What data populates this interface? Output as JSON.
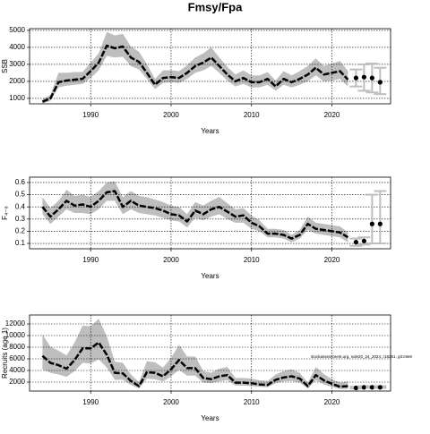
{
  "title": "Fmsy/Fpa",
  "annotation": "stockassessment.org, sole20_24_2024, r18261, git:c9e8",
  "chart_data": [
    {
      "type": "band-line",
      "ylabel": "SSB",
      "xlabel": "Years",
      "xlim": [
        1982.4,
        2027.3
      ],
      "xticks": [
        1990,
        2000,
        2010,
        2020
      ],
      "ylim": [
        680,
        5100
      ],
      "yticks": [
        1000,
        2000,
        3000,
        4000,
        5000
      ],
      "grid": true,
      "color": "#000000",
      "band_color": "#bebebe",
      "errorbar_color": "#bebebe",
      "x": [
        1984,
        1985,
        1986,
        1987,
        1988,
        1989,
        1990,
        1991,
        1992,
        1993,
        1994,
        1995,
        1996,
        1997,
        1998,
        1999,
        2000,
        2001,
        2002,
        2003,
        2004,
        2005,
        2006,
        2007,
        2008,
        2009,
        2010,
        2011,
        2012,
        2013,
        2014,
        2015,
        2016,
        2017,
        2018,
        2019,
        2020,
        2021,
        2022
      ],
      "values": [
        800,
        1000,
        1950,
        2050,
        2100,
        2150,
        2600,
        3100,
        4100,
        3950,
        4050,
        3400,
        3150,
        2500,
        1800,
        2200,
        2250,
        2200,
        2500,
        2900,
        3100,
        3400,
        2900,
        2400,
        2000,
        2200,
        1950,
        1950,
        2150,
        1700,
        2150,
        1950,
        2150,
        2400,
        2800,
        2400,
        2500,
        2600,
        2100
      ],
      "lower": [
        700,
        850,
        1650,
        1750,
        1800,
        1850,
        2200,
        2650,
        3500,
        3400,
        3450,
        2900,
        2700,
        2150,
        1550,
        1900,
        1950,
        1900,
        2150,
        2500,
        2650,
        2900,
        2500,
        2050,
        1700,
        1850,
        1650,
        1650,
        1800,
        1450,
        1800,
        1650,
        1800,
        2000,
        2350,
        2000,
        2050,
        2150,
        1700
      ],
      "upper": [
        950,
        1200,
        2500,
        2500,
        2550,
        2550,
        3100,
        3650,
        4900,
        4700,
        4800,
        4050,
        3750,
        3000,
        2150,
        2650,
        2650,
        2600,
        2950,
        3400,
        3650,
        4000,
        3400,
        2850,
        2400,
        2650,
        2350,
        2350,
        2550,
        2050,
        2600,
        2350,
        2600,
        2900,
        3350,
        2900,
        3050,
        3200,
        2600
      ],
      "projection": {
        "x": [
          2023,
          2024,
          2025,
          2026
        ],
        "values": [
          2200,
          2250,
          2200,
          1950
        ],
        "lower": [
          1700,
          1450,
          1350,
          1250
        ],
        "upper": [
          2700,
          3000,
          3050,
          2800
        ]
      }
    },
    {
      "type": "band-line",
      "ylabel": "F₄₋₈",
      "xlabel": "Years",
      "xlim": [
        1982.4,
        2027.3
      ],
      "xticks": [
        1990,
        2000,
        2010,
        2020
      ],
      "ylim": [
        0.056,
        0.644
      ],
      "yticks": [
        0.1,
        0.2,
        0.3,
        0.4,
        0.5,
        0.6
      ],
      "grid": true,
      "color": "#000000",
      "band_color": "#bebebe",
      "errorbar_color": "#bebebe",
      "x": [
        1984,
        1985,
        1986,
        1987,
        1988,
        1989,
        1990,
        1991,
        1992,
        1993,
        1994,
        1995,
        1996,
        1997,
        1998,
        1999,
        2000,
        2001,
        2002,
        2003,
        2004,
        2005,
        2006,
        2007,
        2008,
        2009,
        2010,
        2011,
        2012,
        2013,
        2014,
        2015,
        2016,
        2017,
        2018,
        2019,
        2020,
        2021,
        2022
      ],
      "values": [
        0.4,
        0.32,
        0.38,
        0.45,
        0.41,
        0.42,
        0.4,
        0.45,
        0.52,
        0.53,
        0.4,
        0.45,
        0.41,
        0.4,
        0.39,
        0.37,
        0.34,
        0.33,
        0.28,
        0.37,
        0.34,
        0.38,
        0.4,
        0.36,
        0.32,
        0.33,
        0.27,
        0.24,
        0.18,
        0.18,
        0.17,
        0.14,
        0.17,
        0.26,
        0.22,
        0.21,
        0.2,
        0.19,
        0.15
      ],
      "lower": [
        0.34,
        0.26,
        0.32,
        0.38,
        0.35,
        0.35,
        0.34,
        0.38,
        0.45,
        0.45,
        0.34,
        0.38,
        0.35,
        0.34,
        0.33,
        0.31,
        0.29,
        0.28,
        0.23,
        0.31,
        0.29,
        0.32,
        0.34,
        0.3,
        0.27,
        0.27,
        0.22,
        0.2,
        0.15,
        0.15,
        0.14,
        0.11,
        0.14,
        0.21,
        0.18,
        0.17,
        0.16,
        0.15,
        0.11
      ],
      "upper": [
        0.48,
        0.39,
        0.45,
        0.54,
        0.49,
        0.5,
        0.48,
        0.53,
        0.6,
        0.61,
        0.48,
        0.53,
        0.49,
        0.48,
        0.46,
        0.44,
        0.41,
        0.4,
        0.34,
        0.44,
        0.41,
        0.45,
        0.48,
        0.43,
        0.38,
        0.39,
        0.33,
        0.29,
        0.22,
        0.22,
        0.21,
        0.17,
        0.21,
        0.32,
        0.27,
        0.26,
        0.25,
        0.24,
        0.19
      ],
      "projection": {
        "x": [
          2023,
          2024,
          2025,
          2026
        ],
        "values": [
          0.11,
          0.12,
          0.26,
          0.26
        ],
        "lower": [
          0.08,
          0.09,
          0.1,
          0.1
        ],
        "upper": [
          0.14,
          0.15,
          0.5,
          0.53
        ]
      }
    },
    {
      "type": "band-line",
      "ylabel": "Recruits (age 1)",
      "xlabel": "Years",
      "xlim": [
        1982.4,
        2027.3
      ],
      "xticks": [
        1990,
        2000,
        2010,
        2020
      ],
      "ylim": [
        460,
        13540
      ],
      "yticks": [
        2000,
        4000,
        6000,
        8000,
        10000,
        12000
      ],
      "grid": true,
      "color": "#000000",
      "band_color": "#bebebe",
      "errorbar_color": "#bebebe",
      "x": [
        1984,
        1985,
        1986,
        1987,
        1988,
        1989,
        1990,
        1991,
        1992,
        1993,
        1994,
        1995,
        1996,
        1997,
        1998,
        1999,
        2000,
        2001,
        2002,
        2003,
        2004,
        2005,
        2006,
        2007,
        2008,
        2009,
        2010,
        2011,
        2012,
        2013,
        2014,
        2015,
        2016,
        2017,
        2018,
        2019,
        2020,
        2021,
        2022
      ],
      "values": [
        6500,
        5300,
        4900,
        4300,
        5800,
        7800,
        7800,
        8800,
        6700,
        3600,
        3500,
        2200,
        1300,
        3700,
        3600,
        3000,
        4200,
        5800,
        4400,
        4400,
        2700,
        2500,
        3000,
        3200,
        1900,
        1900,
        1800,
        1600,
        1500,
        2400,
        2800,
        3000,
        2600,
        1300,
        3200,
        2300,
        1700,
        1200,
        1300
      ],
      "lower": [
        4200,
        3600,
        3300,
        2900,
        3900,
        5300,
        5200,
        5900,
        4500,
        2400,
        2400,
        1500,
        900,
        2600,
        2500,
        2100,
        3000,
        4100,
        3100,
        3100,
        1900,
        1800,
        2100,
        2300,
        1400,
        1400,
        1300,
        1200,
        1100,
        1800,
        2100,
        2200,
        1900,
        900,
        2300,
        1600,
        1200,
        800,
        800
      ],
      "upper": [
        10200,
        8100,
        7400,
        6600,
        8800,
        11700,
        11600,
        12900,
        9900,
        5500,
        5300,
        3300,
        2000,
        5600,
        5400,
        4500,
        6200,
        8400,
        6400,
        6400,
        3900,
        3600,
        4300,
        4600,
        2700,
        2700,
        2600,
        2300,
        2200,
        3300,
        3900,
        4200,
        3600,
        1900,
        4600,
        3400,
        2500,
        1900,
        2100
      ],
      "projection": {
        "x": [
          2023,
          2024,
          2025,
          2026
        ],
        "values": [
          1000,
          1100,
          1100,
          1100
        ],
        "lower": [
          900,
          1000,
          1000,
          1000
        ],
        "upper": [
          1200,
          1300,
          1300,
          1300
        ]
      }
    }
  ]
}
